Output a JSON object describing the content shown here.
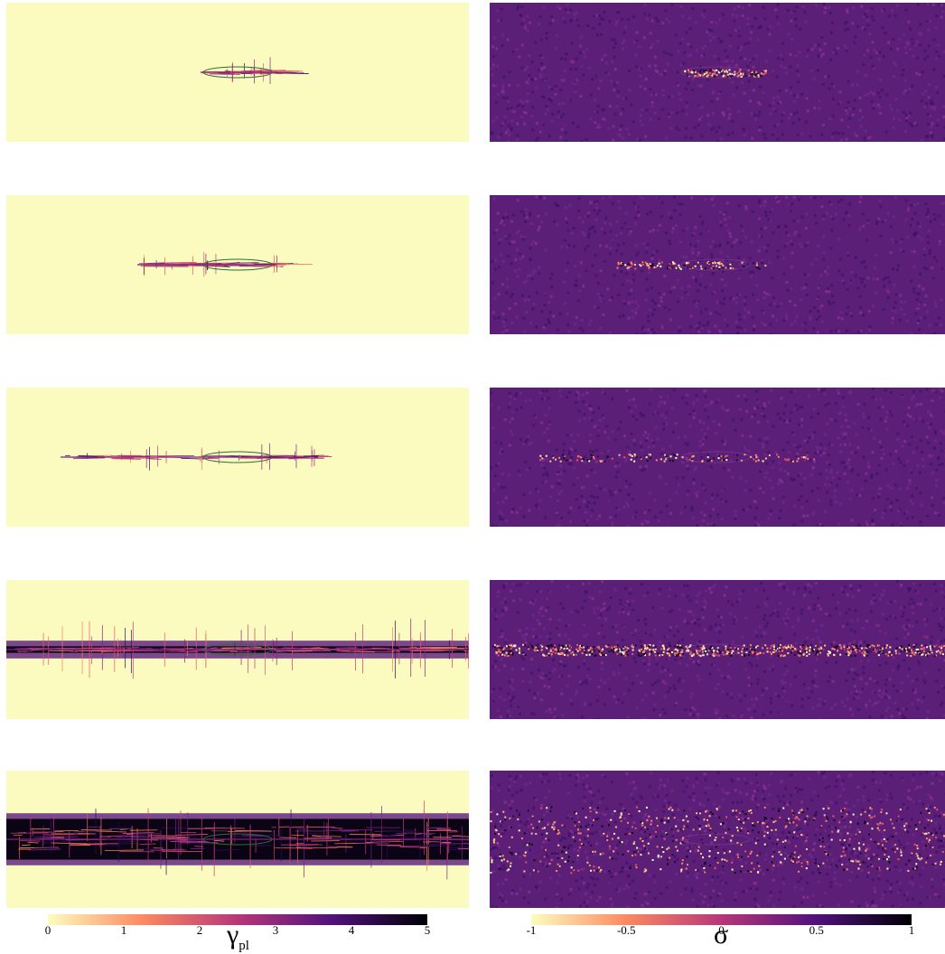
{
  "colorbars": [
    {
      "id": "gamma",
      "label_main": "γ",
      "label_sub": "pl",
      "ticks": [
        "0",
        "1",
        "2",
        "3",
        "4",
        "5"
      ],
      "colors": [
        "#fcfdbf",
        "#fc8961",
        "#b73779",
        "#51127c",
        "#000004"
      ]
    },
    {
      "id": "sigma",
      "label_main": "σ",
      "label_sub": "",
      "ticks": [
        "-1",
        "-0.5",
        "0",
        "0.5",
        "1"
      ],
      "colors": [
        "#fcfdbf",
        "#fc8961",
        "#b73779",
        "#51127c",
        "#000004"
      ]
    }
  ],
  "panels": [
    {
      "row": 1,
      "crack_extent": 0.15,
      "band": 0.0
    },
    {
      "row": 2,
      "crack_extent": 0.29,
      "band": 0.0
    },
    {
      "row": 3,
      "crack_extent": 0.56,
      "band": 0.0
    },
    {
      "row": 4,
      "crack_extent": 1.0,
      "band": 0.05
    },
    {
      "row": 5,
      "crack_extent": 1.0,
      "band": 0.3
    }
  ],
  "colors": {
    "left_background": "#fbfbc0",
    "right_background": "#5c1f78",
    "ellipse": "#2f6b3c"
  }
}
